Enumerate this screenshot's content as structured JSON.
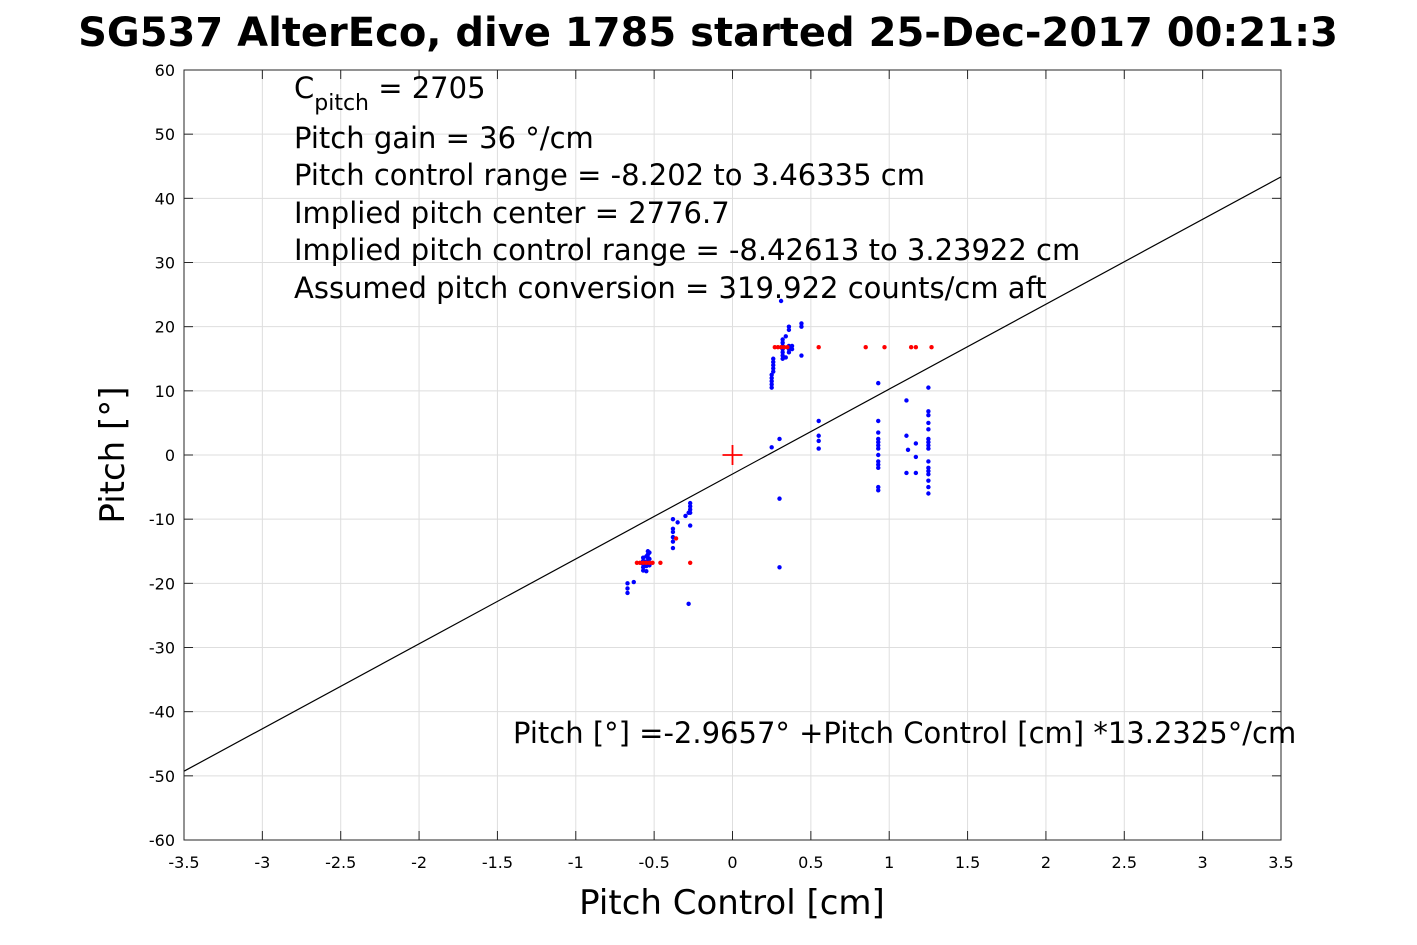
{
  "chart_data": {
    "type": "scatter",
    "title": "SG537 AlterEco, dive 1785 started 25-Dec-2017 00:21:3",
    "xlabel": "Pitch Control [cm]",
    "ylabel": "Pitch [°]",
    "xlim": [
      -3.5,
      3.5
    ],
    "ylim": [
      -60,
      60
    ],
    "x_ticks": [
      "-3.5",
      "-3",
      "-2.5",
      "-2",
      "-1.5",
      "-1",
      "-0.5",
      "0",
      "0.5",
      "1",
      "1.5",
      "2",
      "2.5",
      "3",
      "3.5"
    ],
    "y_ticks": [
      "60",
      "50",
      "40",
      "30",
      "20",
      "10",
      "0",
      "-10",
      "-20",
      "-30",
      "-40",
      "-50",
      "-60"
    ],
    "grid": true,
    "annotation": {
      "c_label_main": "C",
      "c_label_sub": "pitch",
      "c_value": " = 2705",
      "lines": [
        "Pitch gain = 36 °/cm",
        "Pitch control range = -8.202 to 3.46335 cm",
        "Implied pitch center = 2776.7",
        "Implied pitch control range = -8.42613 to 3.23922 cm",
        "Assumed pitch conversion = 319.922 counts/cm aft"
      ]
    },
    "fit_equation": "Pitch [°] =-2.9657° +Pitch Control [cm] *13.2325°/cm",
    "fit_line": {
      "intercept": -2.9657,
      "slope": 13.2325,
      "color": "#000000"
    },
    "center_marker": {
      "x": 0,
      "y": 0,
      "color": "#ff0000"
    },
    "series": [
      {
        "color": "#0000ff",
        "points": [
          [
            -0.67,
            -20.0
          ],
          [
            -0.67,
            -20.8
          ],
          [
            -0.67,
            -21.5
          ],
          [
            -0.63,
            -19.8
          ],
          [
            -0.57,
            -16.0
          ],
          [
            -0.57,
            -16.5
          ],
          [
            -0.57,
            -17.0
          ],
          [
            -0.57,
            -17.5
          ],
          [
            -0.57,
            -18.0
          ],
          [
            -0.55,
            -15.8
          ],
          [
            -0.55,
            -16.6
          ],
          [
            -0.55,
            -17.3
          ],
          [
            -0.55,
            -18.1
          ],
          [
            -0.54,
            -15.0
          ],
          [
            -0.54,
            -15.5
          ],
          [
            -0.54,
            -16.0
          ],
          [
            -0.54,
            -16.5
          ],
          [
            -0.54,
            -17.0
          ],
          [
            -0.53,
            -15.2
          ],
          [
            -0.53,
            -16.2
          ],
          [
            -0.53,
            -17.2
          ],
          [
            -0.38,
            -10.0
          ],
          [
            -0.38,
            -11.5
          ],
          [
            -0.38,
            -12.0
          ],
          [
            -0.38,
            -12.8
          ],
          [
            -0.38,
            -13.5
          ],
          [
            -0.38,
            -14.5
          ],
          [
            -0.35,
            -10.5
          ],
          [
            -0.3,
            -9.5
          ],
          [
            -0.28,
            -9.0
          ],
          [
            -0.27,
            -7.5
          ],
          [
            -0.27,
            -8.0
          ],
          [
            -0.27,
            -8.5
          ],
          [
            -0.27,
            -9.0
          ],
          [
            -0.27,
            -11.0
          ],
          [
            -0.28,
            -23.2
          ],
          [
            0.25,
            1.2
          ],
          [
            0.25,
            10.5
          ],
          [
            0.25,
            11.0
          ],
          [
            0.25,
            11.5
          ],
          [
            0.25,
            12.0
          ],
          [
            0.25,
            12.5
          ],
          [
            0.26,
            13.0
          ],
          [
            0.26,
            13.5
          ],
          [
            0.26,
            14.0
          ],
          [
            0.26,
            14.5
          ],
          [
            0.26,
            15.0
          ],
          [
            0.3,
            2.5
          ],
          [
            0.3,
            -6.8
          ],
          [
            0.3,
            -17.5
          ],
          [
            0.31,
            24.0
          ],
          [
            0.32,
            15.0
          ],
          [
            0.32,
            15.5
          ],
          [
            0.32,
            16.0
          ],
          [
            0.32,
            16.5
          ],
          [
            0.32,
            17.0
          ],
          [
            0.32,
            17.5
          ],
          [
            0.32,
            18.0
          ],
          [
            0.34,
            18.5
          ],
          [
            0.34,
            15.2
          ],
          [
            0.36,
            16.0
          ],
          [
            0.36,
            16.5
          ],
          [
            0.36,
            17.0
          ],
          [
            0.36,
            19.5
          ],
          [
            0.36,
            20.0
          ],
          [
            0.38,
            16.5
          ],
          [
            0.38,
            17.0
          ],
          [
            0.44,
            15.5
          ],
          [
            0.44,
            20.0
          ],
          [
            0.44,
            20.5
          ],
          [
            0.55,
            1.0
          ],
          [
            0.55,
            2.2
          ],
          [
            0.55,
            3.0
          ],
          [
            0.55,
            5.3
          ],
          [
            0.93,
            11.2
          ],
          [
            0.93,
            5.3
          ],
          [
            0.93,
            3.5
          ],
          [
            0.93,
            2.5
          ],
          [
            0.93,
            2.0
          ],
          [
            0.93,
            1.5
          ],
          [
            0.93,
            1.0
          ],
          [
            0.93,
            0.0
          ],
          [
            0.93,
            -1.0
          ],
          [
            0.93,
            -1.5
          ],
          [
            0.93,
            -2.0
          ],
          [
            0.93,
            -5.0
          ],
          [
            0.93,
            -5.5
          ],
          [
            1.11,
            8.5
          ],
          [
            1.11,
            3.0
          ],
          [
            1.12,
            0.8
          ],
          [
            1.11,
            -2.8
          ],
          [
            1.17,
            1.8
          ],
          [
            1.17,
            -0.3
          ],
          [
            1.17,
            -2.8
          ],
          [
            1.25,
            10.5
          ],
          [
            1.25,
            6.8
          ],
          [
            1.25,
            6.2
          ],
          [
            1.25,
            5.0
          ],
          [
            1.25,
            4.0
          ],
          [
            1.25,
            2.5
          ],
          [
            1.25,
            2.0
          ],
          [
            1.25,
            1.5
          ],
          [
            1.25,
            1.0
          ],
          [
            1.25,
            -1.0
          ],
          [
            1.25,
            -2.0
          ],
          [
            1.25,
            -2.5
          ],
          [
            1.25,
            -3.0
          ],
          [
            1.25,
            -4.0
          ],
          [
            1.25,
            -5.0
          ],
          [
            1.25,
            -6.0
          ]
        ]
      },
      {
        "color": "#ff0000",
        "points": [
          [
            -0.61,
            -16.8
          ],
          [
            -0.59,
            -16.8
          ],
          [
            -0.57,
            -16.8
          ],
          [
            -0.55,
            -16.8
          ],
          [
            -0.53,
            -16.8
          ],
          [
            -0.51,
            -16.8
          ],
          [
            -0.46,
            -16.8
          ],
          [
            -0.27,
            -16.8
          ],
          [
            -0.36,
            -13.0
          ],
          [
            0.27,
            16.8
          ],
          [
            0.29,
            16.8
          ],
          [
            0.31,
            16.8
          ],
          [
            0.33,
            16.8
          ],
          [
            0.35,
            16.8
          ],
          [
            0.55,
            16.8
          ],
          [
            0.85,
            16.8
          ],
          [
            0.97,
            16.8
          ],
          [
            1.14,
            16.8
          ],
          [
            1.17,
            16.8
          ],
          [
            1.27,
            16.8
          ]
        ]
      }
    ]
  }
}
